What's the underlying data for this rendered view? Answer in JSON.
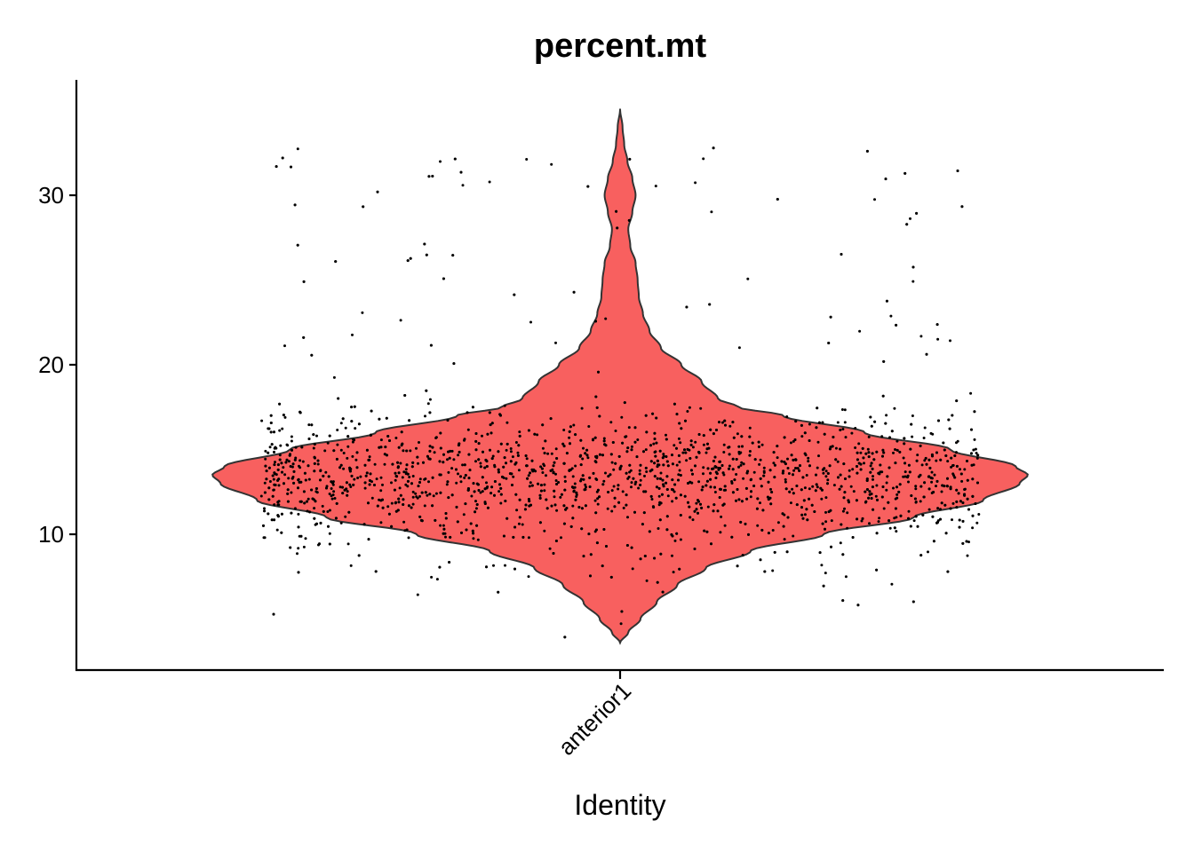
{
  "chart_data": {
    "type": "violin",
    "title": "percent.mt",
    "xlabel": "Identity",
    "ylabel": "",
    "categories": [
      "anterior1"
    ],
    "ylim": [
      2.5,
      37
    ],
    "yticks": [
      10,
      20,
      30
    ],
    "ytick_labels": [
      "10",
      "20",
      "30"
    ],
    "grid": false,
    "legend": "none",
    "fill_color": "#F8605F",
    "outline_color": "#333333",
    "point_color": "#000000",
    "n_points": 2600,
    "violin": {
      "min": 3.6,
      "max": 35.1,
      "relative_width_profile": [
        {
          "y": 3.6,
          "w": 0.0
        },
        {
          "y": 4.2,
          "w": 0.02
        },
        {
          "y": 5.0,
          "w": 0.05
        },
        {
          "y": 6.0,
          "w": 0.09
        },
        {
          "y": 7.0,
          "w": 0.14
        },
        {
          "y": 8.0,
          "w": 0.21
        },
        {
          "y": 9.0,
          "w": 0.32
        },
        {
          "y": 10.0,
          "w": 0.5
        },
        {
          "y": 11.0,
          "w": 0.72
        },
        {
          "y": 12.0,
          "w": 0.89
        },
        {
          "y": 13.0,
          "w": 0.98
        },
        {
          "y": 13.5,
          "w": 1.0
        },
        {
          "y": 14.0,
          "w": 0.97
        },
        {
          "y": 15.0,
          "w": 0.81
        },
        {
          "y": 16.0,
          "w": 0.6
        },
        {
          "y": 17.0,
          "w": 0.4
        },
        {
          "y": 17.5,
          "w": 0.29
        },
        {
          "y": 18.0,
          "w": 0.24
        },
        {
          "y": 19.0,
          "w": 0.2
        },
        {
          "y": 20.0,
          "w": 0.15
        },
        {
          "y": 21.0,
          "w": 0.1
        },
        {
          "y": 22.0,
          "w": 0.072
        },
        {
          "y": 23.0,
          "w": 0.056
        },
        {
          "y": 24.0,
          "w": 0.046
        },
        {
          "y": 25.0,
          "w": 0.043
        },
        {
          "y": 26.0,
          "w": 0.038
        },
        {
          "y": 27.0,
          "w": 0.025
        },
        {
          "y": 28.0,
          "w": 0.02
        },
        {
          "y": 29.0,
          "w": 0.03
        },
        {
          "y": 30.0,
          "w": 0.038
        },
        {
          "y": 31.0,
          "w": 0.03
        },
        {
          "y": 32.0,
          "w": 0.018
        },
        {
          "y": 33.0,
          "w": 0.01
        },
        {
          "y": 34.0,
          "w": 0.006
        },
        {
          "y": 35.1,
          "w": 0.0
        }
      ]
    }
  }
}
